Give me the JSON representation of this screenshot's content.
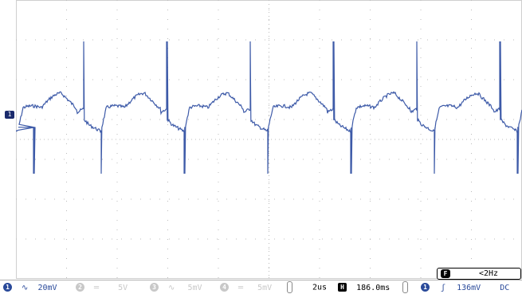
{
  "channel_marker": "1",
  "frequency_counter": {
    "icon": "F",
    "value": "<2Hz"
  },
  "channels": [
    {
      "num": "1",
      "coupling": "∿",
      "scale": "20mV",
      "state": "on"
    },
    {
      "num": "2",
      "coupling": "═",
      "scale": "5V",
      "state": "off"
    },
    {
      "num": "3",
      "coupling": "∿",
      "scale": "5mV",
      "state": "off"
    },
    {
      "num": "4",
      "coupling": "═",
      "scale": "5mV",
      "state": "off"
    }
  ],
  "timebase": {
    "scale": "2us",
    "h_icon": "H",
    "delay": "186.0ms"
  },
  "trigger": {
    "source": "1",
    "slope": "ʃ",
    "level": "136mV",
    "coupling": "DC"
  },
  "colors": {
    "trace": "#3d5aa8",
    "grid": "#bcbcbc",
    "active": "#2a4a9a",
    "inactive": "#c8c8c8"
  }
}
